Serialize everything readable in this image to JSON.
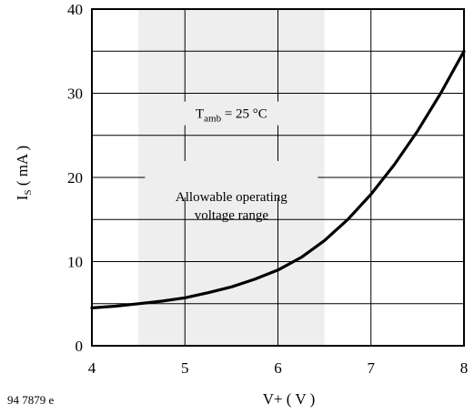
{
  "chart_data": {
    "type": "line",
    "x_ticks": [
      "4",
      "5",
      "6",
      "7",
      "8"
    ],
    "y_ticks": [
      "0",
      "10",
      "20",
      "30",
      "40"
    ],
    "xlim": [
      4,
      8
    ],
    "ylim": [
      0,
      40
    ],
    "x_minor_step": 1,
    "y_minor_step": 5,
    "xlabel": "V+ ( V )",
    "ylabel": {
      "main": "I",
      "sub": "S",
      "rest": " ( mA )"
    },
    "grid": true,
    "shaded_region": {
      "x_start": 4.5,
      "x_end": 6.5,
      "color": "#eeeeee",
      "label_lines": [
        "Allowable operating",
        "voltage range"
      ]
    },
    "annotation": {
      "main": "T",
      "sub": "amb",
      "rest": " = 25 °C"
    },
    "figure_code": "94 7879 e",
    "series": [
      {
        "color": "#000000",
        "x": [
          4.0,
          4.25,
          4.5,
          4.75,
          5.0,
          5.25,
          5.5,
          5.75,
          6.0,
          6.25,
          6.5,
          6.75,
          7.0,
          7.25,
          7.5,
          7.75,
          8.0
        ],
        "y": [
          4.5,
          4.7,
          5.0,
          5.3,
          5.7,
          6.3,
          7.0,
          7.9,
          9.0,
          10.5,
          12.5,
          15.0,
          18.0,
          21.5,
          25.5,
          30.0,
          35.0
        ]
      }
    ]
  }
}
